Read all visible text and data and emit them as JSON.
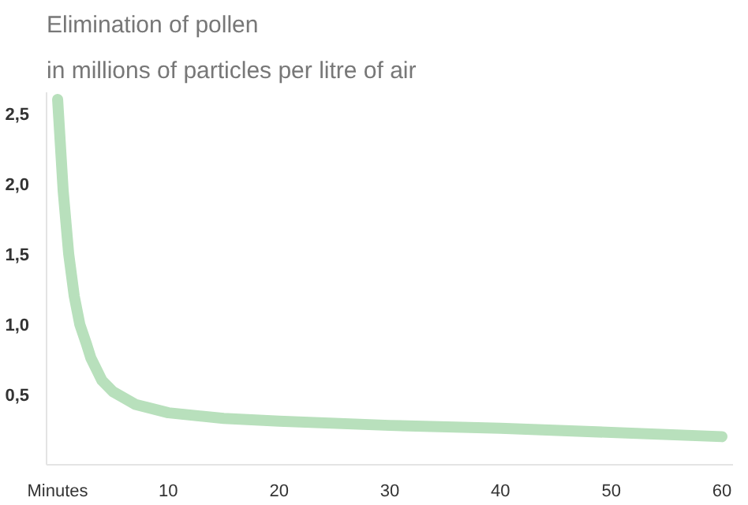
{
  "chart_data": {
    "type": "line",
    "title": "Elimination of pollen",
    "subtitle": "in millions of particles per litre of air",
    "x": [
      0,
      0.5,
      1,
      1.5,
      2,
      2.6,
      3,
      4,
      5,
      7,
      10,
      15,
      20,
      30,
      40,
      50,
      60
    ],
    "series": [
      {
        "color": "#b8e0bc",
        "values": [
          2.6,
          1.95,
          1.5,
          1.2,
          1.0,
          0.86,
          0.76,
          0.6,
          0.52,
          0.43,
          0.37,
          0.33,
          0.31,
          0.28,
          0.26,
          0.23,
          0.2
        ]
      }
    ],
    "xlim": [
      -1,
      61
    ],
    "ylim": [
      0,
      2.65
    ],
    "xticks": [
      {
        "value": 0,
        "label": "Minutes"
      },
      10,
      20,
      30,
      40,
      50,
      60
    ],
    "yticks": [
      {
        "value": 0.5,
        "label": "0,5"
      },
      {
        "value": 1.0,
        "label": "1,0"
      },
      {
        "value": 1.5,
        "label": "1,5"
      },
      {
        "value": 2.0,
        "label": "2,0"
      },
      {
        "value": 2.5,
        "label": "2,5"
      }
    ],
    "grid": false,
    "marker": "none",
    "line_style": "solid"
  }
}
